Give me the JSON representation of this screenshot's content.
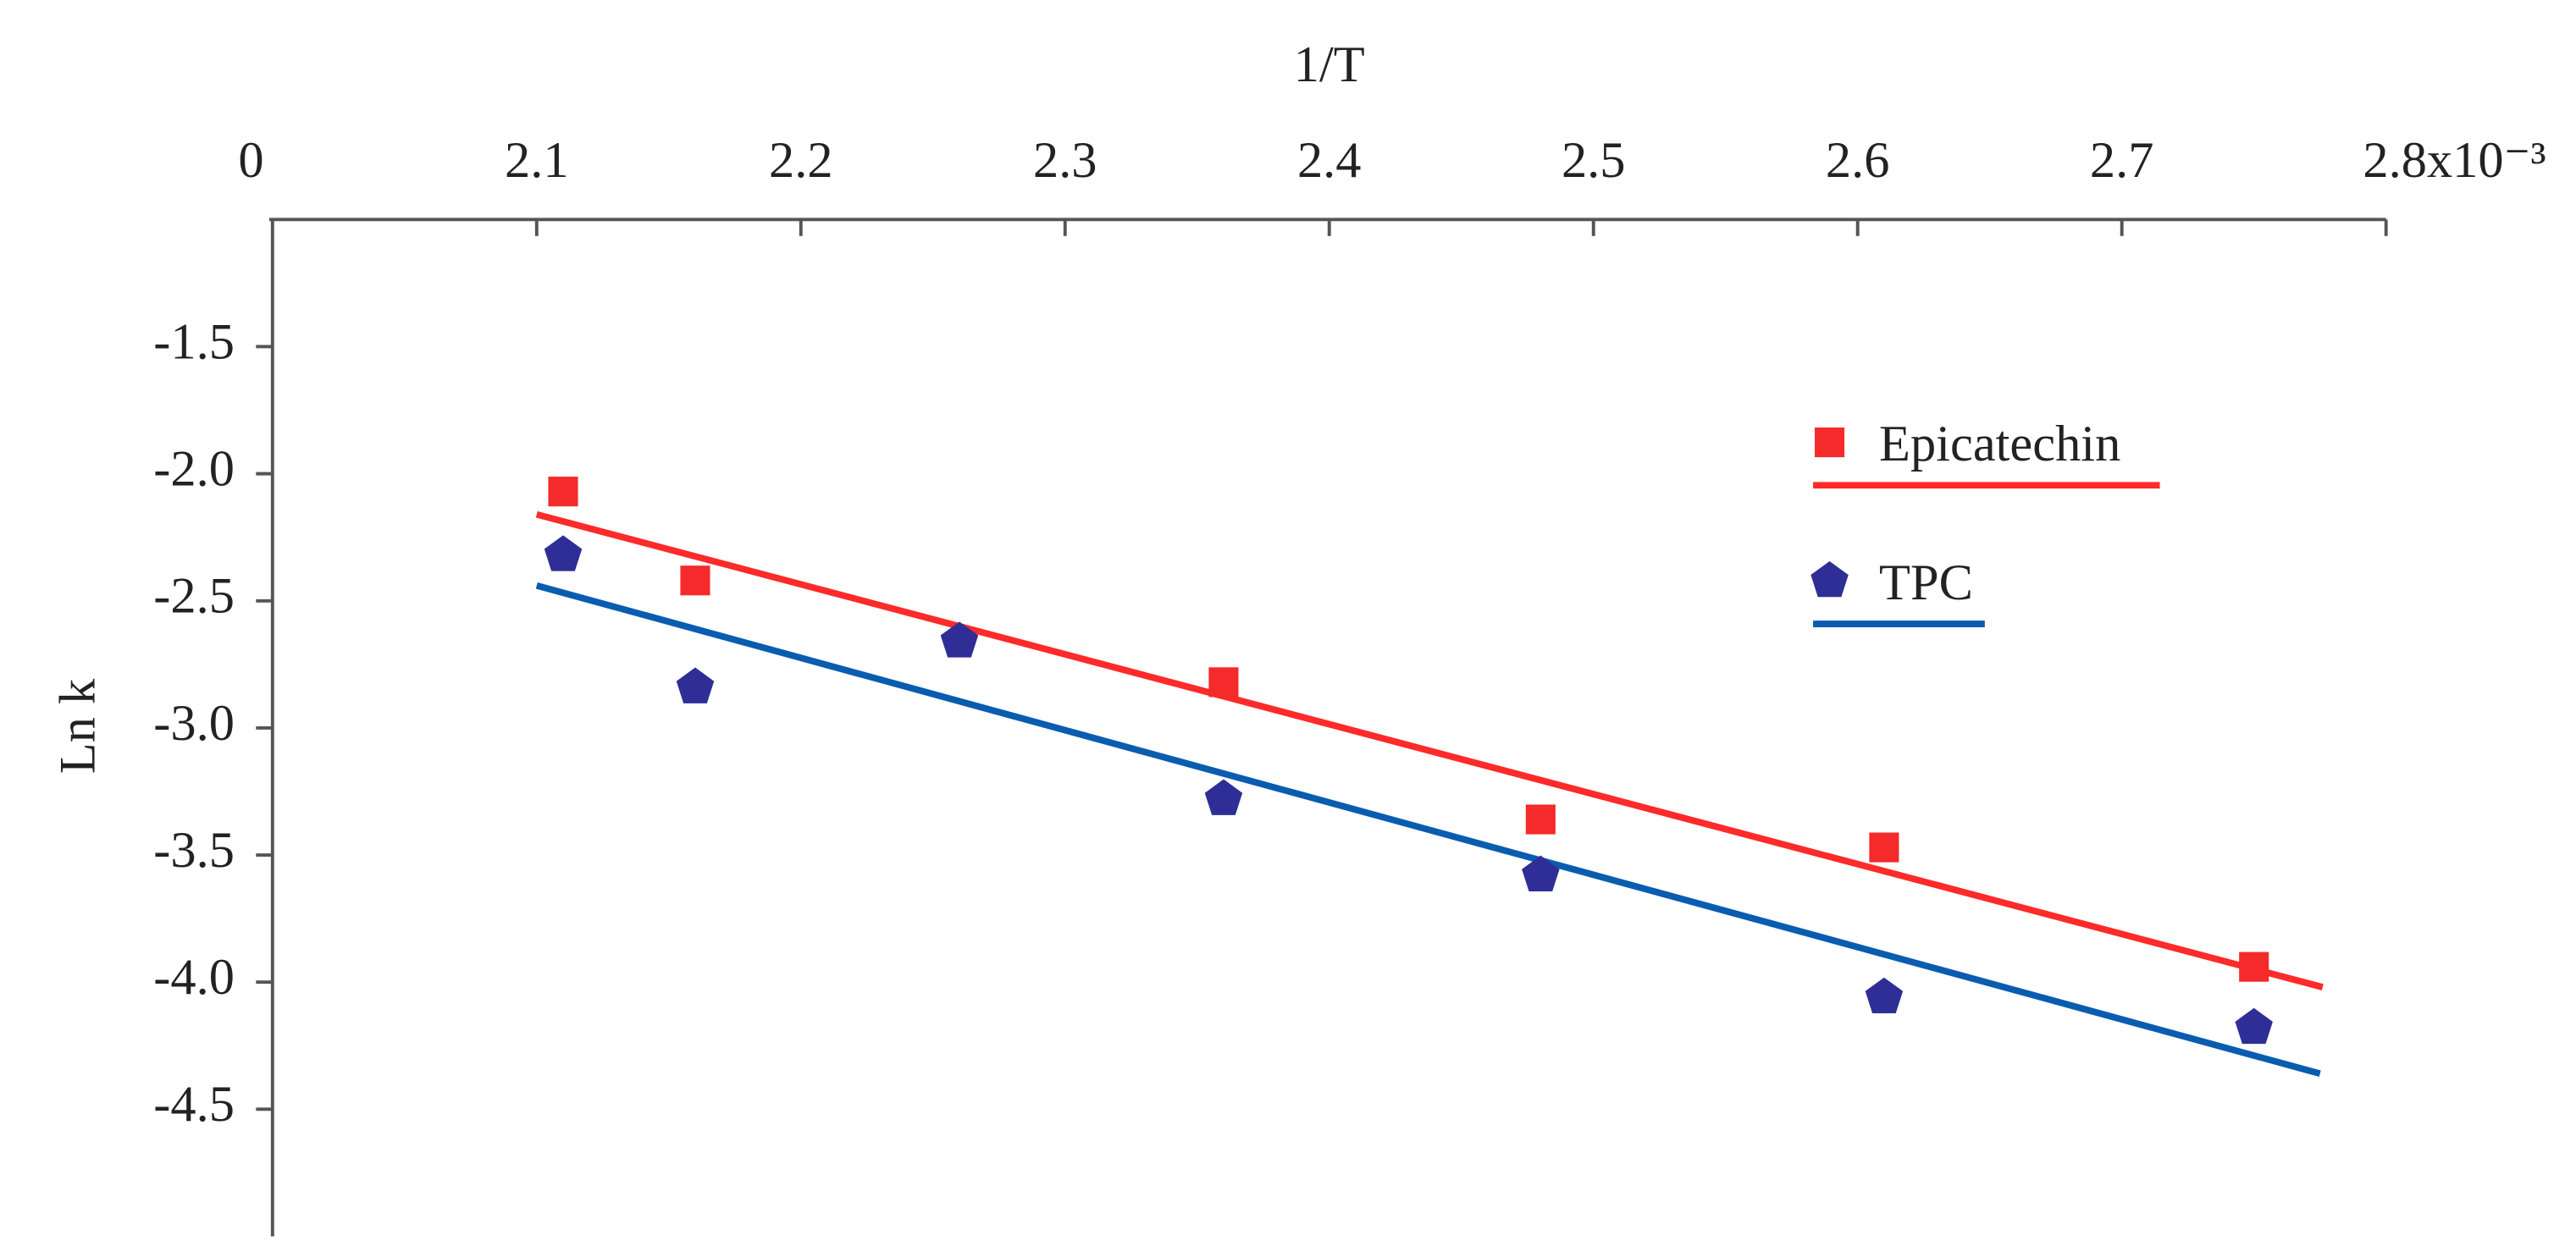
{
  "chart_data": {
    "type": "scatter",
    "x_title": "1/T",
    "y_title": "Ln k",
    "x_origin_label": "0",
    "xlim": [
      2.0,
      2.8
    ],
    "xticks": [
      2.1,
      2.2,
      2.3,
      2.4,
      2.5,
      2.6,
      2.7,
      {
        "value": 2.8,
        "label": "2.8x10⁻³"
      }
    ],
    "ylim": [
      -5.0,
      -1.0
    ],
    "yticks": [
      -1.5,
      {
        "value": -2.0,
        "label": "-2.0"
      },
      -2.5,
      {
        "value": -3.0,
        "label": "-3.0"
      },
      -3.5,
      {
        "value": -4.0,
        "label": "-4.0"
      },
      -4.5
    ],
    "grid": false,
    "legend": "upper right",
    "series": [
      {
        "name": "Epicatechin",
        "color": "#f52a2a",
        "marker": "square",
        "x": [
          2.11,
          2.16,
          2.36,
          2.48,
          2.61,
          2.75
        ],
        "values": [
          -2.07,
          -2.42,
          -2.82,
          -3.36,
          -3.47,
          -3.94
        ],
        "fit": {
          "color": "#ff2a2a",
          "x": [
            2.1,
            2.776
          ],
          "values": [
            -2.16,
            -4.02
          ]
        }
      },
      {
        "name": "TPC",
        "color": "#2e2e96",
        "marker": "pentagon",
        "x": [
          2.11,
          2.16,
          2.26,
          2.36,
          2.48,
          2.61,
          2.75
        ],
        "values": [
          -2.32,
          -2.84,
          -2.66,
          -3.28,
          -3.58,
          -4.06,
          -4.18
        ],
        "fit": {
          "color": "#0a5cb0",
          "x": [
            2.1,
            2.775
          ],
          "values": [
            -2.44,
            -4.36
          ]
        }
      }
    ]
  }
}
